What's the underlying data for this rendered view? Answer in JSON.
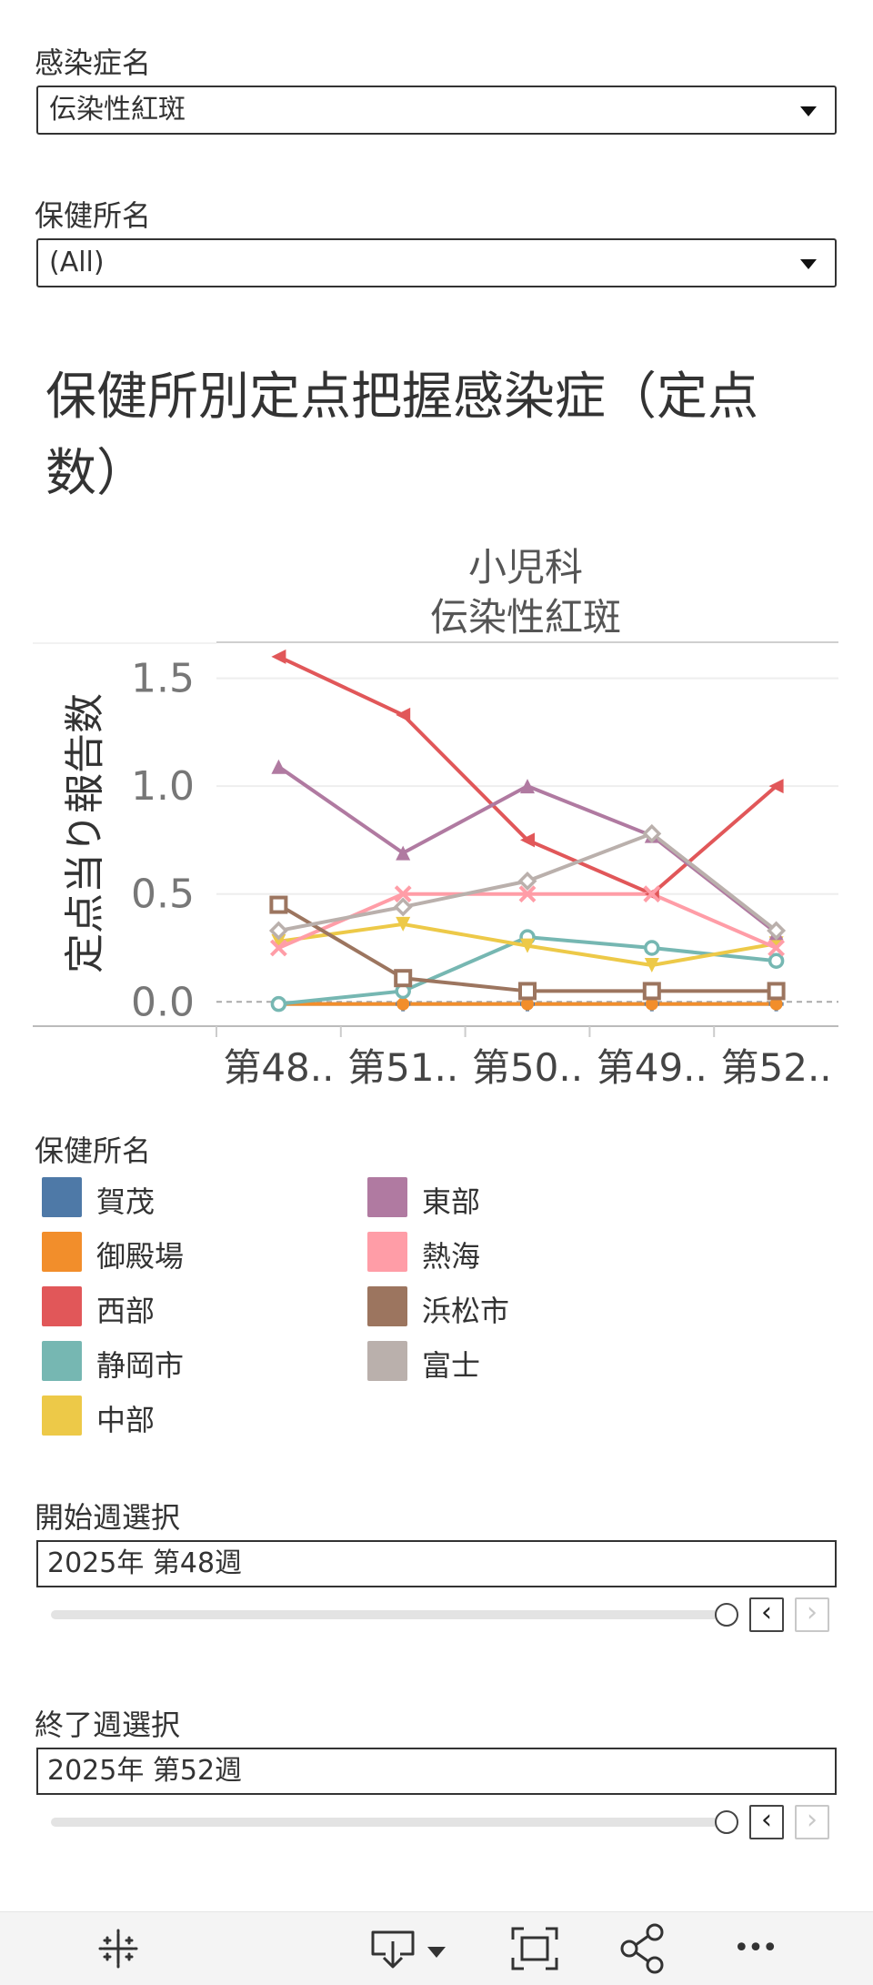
{
  "filters": {
    "disease": {
      "label": "感染症名",
      "value": "伝染性紅斑"
    },
    "health_center": {
      "label": "保健所名",
      "value": "(All)"
    }
  },
  "title": "保健所別定点把握感染症（定点数）",
  "chart_data": {
    "type": "line",
    "header": [
      "小児科",
      "伝染性紅斑"
    ],
    "ylabel": "定点当り報告数",
    "categories": [
      "第48..",
      "第51..",
      "第50..",
      "第49..",
      "第52.."
    ],
    "yticks": [
      "0.0",
      "0.5",
      "1.0",
      "1.5"
    ],
    "ylim": [
      -0.1,
      1.65
    ],
    "series": [
      {
        "name": "賀茂",
        "color": "#4e79a7",
        "marker": "plus",
        "values": [
          -0.01,
          -0.01,
          -0.01,
          -0.01,
          -0.01
        ]
      },
      {
        "name": "御殿場",
        "color": "#f28e2b",
        "marker": "circle",
        "values": [
          -0.01,
          -0.01,
          -0.01,
          -0.01,
          -0.01
        ]
      },
      {
        "name": "西部",
        "color": "#e15759",
        "marker": "triangle-left",
        "values": [
          1.6,
          1.33,
          0.75,
          0.5,
          1.0
        ]
      },
      {
        "name": "静岡市",
        "color": "#76b7b2",
        "marker": "ring",
        "values": [
          -0.01,
          0.05,
          0.3,
          0.25,
          0.19
        ]
      },
      {
        "name": "中部",
        "color": "#edc948",
        "marker": "triangle-down",
        "values": [
          0.28,
          0.36,
          0.26,
          0.17,
          0.27
        ]
      },
      {
        "name": "東部",
        "color": "#b07aa1",
        "marker": "triangle-up",
        "values": [
          1.09,
          0.69,
          1.0,
          0.77,
          0.32
        ]
      },
      {
        "name": "熱海",
        "color": "#ff9da7",
        "marker": "x",
        "values": [
          0.25,
          0.5,
          0.5,
          0.5,
          0.25
        ]
      },
      {
        "name": "浜松市",
        "color": "#9c755f",
        "marker": "square",
        "values": [
          0.45,
          0.11,
          0.05,
          0.05,
          0.05
        ]
      },
      {
        "name": "富士",
        "color": "#bab0ac",
        "marker": "diamond",
        "values": [
          0.33,
          0.44,
          0.56,
          0.78,
          0.33
        ]
      }
    ]
  },
  "legend": {
    "title": "保健所名",
    "items": [
      {
        "name": "賀茂",
        "color": "#4e79a7"
      },
      {
        "name": "御殿場",
        "color": "#f28e2b"
      },
      {
        "name": "西部",
        "color": "#e15759"
      },
      {
        "name": "静岡市",
        "color": "#76b7b2"
      },
      {
        "name": "中部",
        "color": "#edc948"
      },
      {
        "name": "東部",
        "color": "#b07aa1"
      },
      {
        "name": "熱海",
        "color": "#ff9da7"
      },
      {
        "name": "浜松市",
        "color": "#9c755f"
      },
      {
        "name": "富士",
        "color": "#bab0ac"
      }
    ]
  },
  "start_week": {
    "label": "開始週選択",
    "value": "2025年 第48週",
    "prev": "‹",
    "next": "›"
  },
  "end_week": {
    "label": "終了週選択",
    "value": "2025年 第52週",
    "prev": "‹",
    "next": "›"
  },
  "toolbar": {
    "icons": [
      "tableau-logo-icon",
      "download-icon",
      "fullscreen-icon",
      "share-icon",
      "more-icon"
    ],
    "more_label": "•••"
  }
}
